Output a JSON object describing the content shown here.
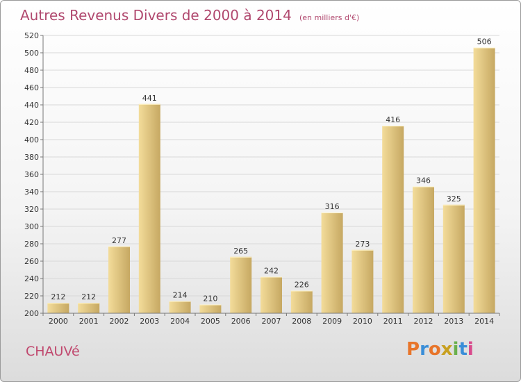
{
  "header": {
    "title": "Autres Revenus Divers de 2000 à 2014",
    "unit": "(en milliers d'€)"
  },
  "footer": {
    "town": "CHAUVé",
    "logo_letters": [
      "P",
      "r",
      "o",
      "x",
      "i",
      "t",
      "i"
    ],
    "logo_colors": [
      "#e8752a",
      "#3a8ed8",
      "#e8752a",
      "#c8a020",
      "#6ab04c",
      "#3a8ed8",
      "#d94a8c"
    ]
  },
  "colors": {
    "bar_light": "#f3dc9a",
    "bar_dark": "#c6a862",
    "title": "#b0486e"
  },
  "chart_data": {
    "type": "bar",
    "title": "Autres Revenus Divers de 2000 à 2014",
    "xlabel": "",
    "ylabel": "",
    "categories": [
      "2000",
      "2001",
      "2002",
      "2003",
      "2004",
      "2005",
      "2006",
      "2007",
      "2008",
      "2009",
      "2010",
      "2011",
      "2012",
      "2013",
      "2014"
    ],
    "values": [
      212,
      212,
      277,
      441,
      214,
      210,
      265,
      242,
      226,
      316,
      273,
      416,
      346,
      325,
      506
    ],
    "ylim": [
      200,
      520
    ],
    "yticks": [
      200,
      220,
      240,
      260,
      280,
      300,
      320,
      340,
      360,
      380,
      400,
      420,
      440,
      460,
      480,
      500,
      520
    ],
    "grid": true,
    "legend": "none"
  }
}
